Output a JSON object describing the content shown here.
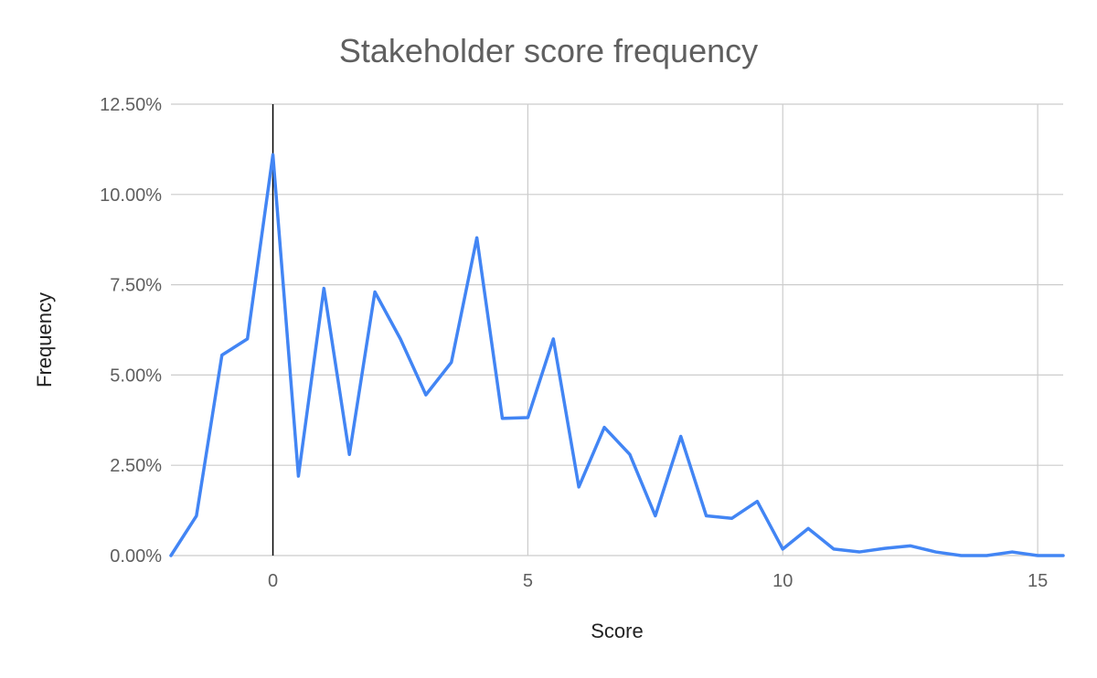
{
  "chart_data": {
    "type": "line",
    "title": "Stakeholder score frequency",
    "xlabel": "Score",
    "ylabel": "Frequency",
    "xlim": [
      -2,
      15.5
    ],
    "ylim": [
      0,
      0.125
    ],
    "x_ticks": [
      0,
      5,
      10,
      15
    ],
    "x_tick_labels": [
      "0",
      "5",
      "10",
      "15"
    ],
    "y_ticks": [
      0,
      0.025,
      0.05,
      0.075,
      0.1,
      0.125
    ],
    "y_tick_labels": [
      "0.00%",
      "2.50%",
      "5.00%",
      "7.50%",
      "10.00%",
      "12.50%"
    ],
    "grid": true,
    "legend": "none",
    "series": [
      {
        "color": "#4285f4",
        "x": [
          -2,
          -1.5,
          -1,
          -0.5,
          0,
          0.5,
          1,
          1.5,
          2,
          2.5,
          3,
          3.5,
          4,
          4.5,
          5,
          5.5,
          6,
          6.5,
          7,
          7.5,
          8,
          8.5,
          9,
          9.5,
          10,
          10.5,
          11,
          11.5,
          12,
          12.5,
          13,
          13.5,
          14,
          14.5,
          15,
          15.5
        ],
        "values": [
          0.0,
          0.011,
          0.0555,
          0.06,
          0.111,
          0.022,
          0.074,
          0.028,
          0.073,
          0.06,
          0.0445,
          0.0535,
          0.088,
          0.038,
          0.0382,
          0.06,
          0.019,
          0.0355,
          0.028,
          0.011,
          0.033,
          0.011,
          0.0103,
          0.015,
          0.0018,
          0.0075,
          0.0018,
          0.001,
          0.002,
          0.0027,
          0.001,
          0.0,
          0.0,
          0.001,
          0.0,
          0.0
        ]
      }
    ]
  }
}
